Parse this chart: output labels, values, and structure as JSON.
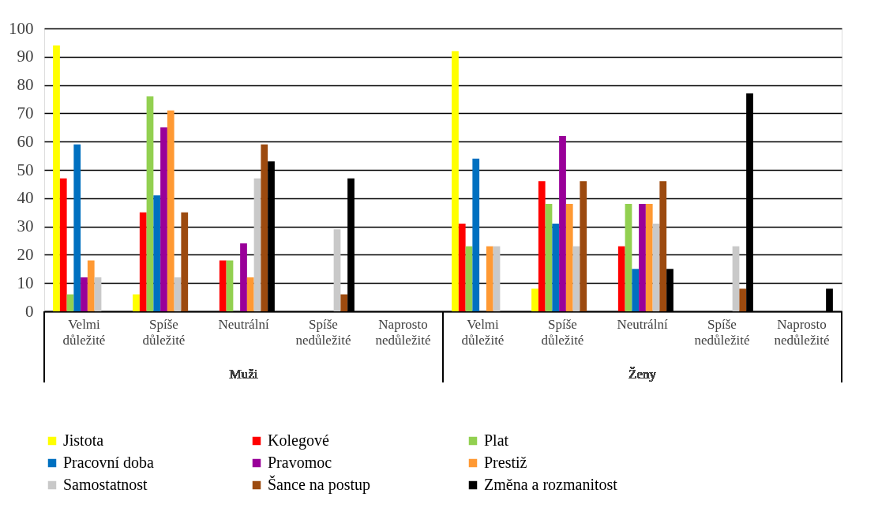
{
  "chart_data": {
    "type": "bar",
    "categories": [
      "Velmi důležité",
      "Spíše důležité",
      "Neutrální",
      "Spíše nedůležité",
      "Naprosto nedůležité",
      "Velmi důležité",
      "Spíše důležité",
      "Neutrální",
      "Spíše nedůležité",
      "Naprosto nedůležité"
    ],
    "annotations": [
      "Muži",
      "Ženy"
    ],
    "ylim": [
      0,
      100
    ],
    "yticks": [
      0,
      10,
      20,
      30,
      40,
      50,
      60,
      70,
      80,
      90,
      100
    ],
    "grid": "y",
    "legend": "bottom",
    "series": [
      {
        "name": "Jistota",
        "color": "#ffff00",
        "values": [
          94,
          6,
          0,
          0,
          0,
          92,
          8,
          0,
          0,
          0
        ]
      },
      {
        "name": "Kolegové",
        "color": "#ff0000",
        "values": [
          47,
          35,
          18,
          0,
          0,
          31,
          46,
          23,
          0,
          0
        ]
      },
      {
        "name": "Plat",
        "color": "#92d050",
        "values": [
          6,
          76,
          18,
          0,
          0,
          23,
          38,
          38,
          0,
          0
        ]
      },
      {
        "name": "Pracovní doba",
        "color": "#0070c0",
        "values": [
          59,
          41,
          0,
          0,
          0,
          54,
          31,
          15,
          0,
          0
        ]
      },
      {
        "name": "Pravomoc",
        "color": "#990099",
        "values": [
          12,
          65,
          24,
          0,
          0,
          0,
          62,
          38,
          0,
          0
        ]
      },
      {
        "name": "Prestiž",
        "color": "#ff9933",
        "values": [
          18,
          71,
          12,
          0,
          0,
          23,
          38,
          38,
          0,
          0
        ]
      },
      {
        "name": "Samostatnost",
        "color": "#c9c9c9",
        "values": [
          12,
          12,
          47,
          29,
          0,
          23,
          23,
          31,
          23,
          0
        ]
      },
      {
        "name": "Šance na postup",
        "color": "#9c4a0f",
        "values": [
          0,
          35,
          59,
          6,
          0,
          0,
          46,
          46,
          8,
          0
        ]
      },
      {
        "name": "Změna a rozmanitost",
        "color": "#000000",
        "values": [
          0,
          0,
          53,
          47,
          0,
          0,
          0,
          15,
          77,
          8
        ]
      }
    ]
  }
}
